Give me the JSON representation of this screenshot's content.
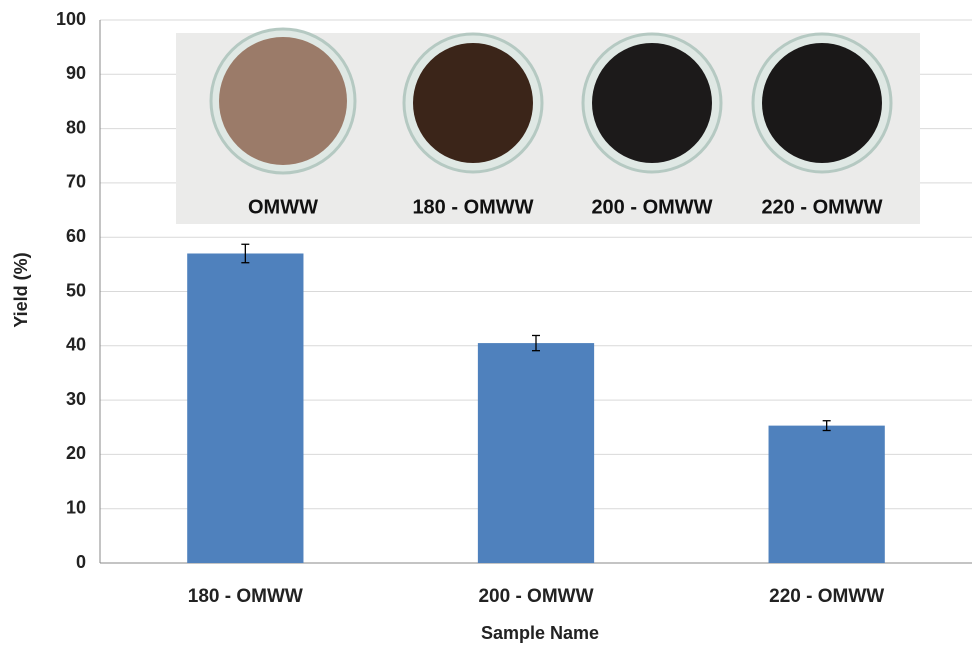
{
  "chart_data": {
    "type": "bar",
    "x_label": "Sample Name",
    "y_label": "Yield (%)",
    "categories": [
      "180 - OMWW",
      "200 - OMWW",
      "220 - OMWW"
    ],
    "values": [
      57,
      40.5,
      25.3
    ],
    "errors": [
      1.7,
      1.4,
      0.9
    ],
    "color": "#4f81bd",
    "ylim": [
      0,
      100
    ],
    "yticks": [
      0,
      10,
      20,
      30,
      40,
      50,
      60,
      70,
      80,
      90,
      100
    ],
    "grid": true,
    "image_labels": [
      "OMWW",
      "180 - OMWW",
      "200 - OMWW",
      "220 - OMWW"
    ]
  }
}
